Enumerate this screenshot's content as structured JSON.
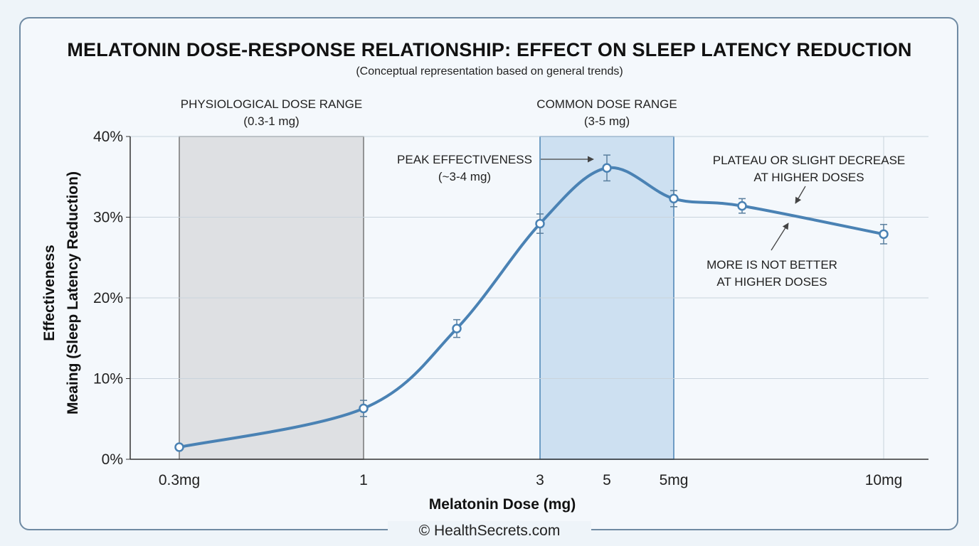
{
  "chart_data": {
    "type": "line",
    "title": "MELATONIN DOSE-RESPONSE RELATIONSHIP: EFFECT ON SLEEP LATENCY REDUCTION",
    "subtitle": "(Conceptual representation based on general trends)",
    "ylabel_line1": "Effectiveness",
    "ylabel_line2": "Meaing (Sleep Latency Reduction)",
    "xlabel": "Melatonin Dose (mg)",
    "ylim": [
      0,
      40
    ],
    "y_ticks": [
      {
        "value": 0,
        "label": "0%"
      },
      {
        "value": 10,
        "label": "10%"
      },
      {
        "value": 20,
        "label": "20%"
      },
      {
        "value": 30,
        "label": "30%"
      },
      {
        "value": 40,
        "label": "40%"
      }
    ],
    "x_ticks": [
      "0.3mg",
      "1",
      "3",
      "5",
      "5mg",
      "10mg"
    ],
    "series": [
      {
        "values": [
          1.5,
          6.3,
          16.2,
          29.2,
          36.1,
          32.3,
          31.4,
          27.9
        ],
        "error": [
          0,
          1.0,
          1.1,
          1.2,
          1.6,
          1.0,
          0.9,
          1.2
        ]
      }
    ],
    "regions": [
      {
        "label_line1": "PHYSIOLOGICAL DOSE RANGE",
        "label_line2": "(0.3-1 mg)",
        "from_tick": 0,
        "to_tick": 1,
        "color": "#dcdde0"
      },
      {
        "label_line1": "COMMON DOSE RANGE",
        "label_line2": "(3-5 mg)",
        "from_tick": 2,
        "to_tick": 4,
        "color": "#c5dcee"
      }
    ],
    "annotations": [
      {
        "line1": "PEAK EFFECTIVENESS",
        "line2": "(~3-4 mg)"
      },
      {
        "line1": "PLATEAU OR SLIGHT DECREASE",
        "line2": "AT HIGHER DOSES"
      },
      {
        "line1": "MORE IS NOT BETTER",
        "line2": "AT HIGHER DOSES"
      }
    ],
    "colors": {
      "line": "#4a82b4",
      "grid": "#c9d3dc",
      "axis": "#333333"
    }
  },
  "footer": "© HealthSecrets.com"
}
